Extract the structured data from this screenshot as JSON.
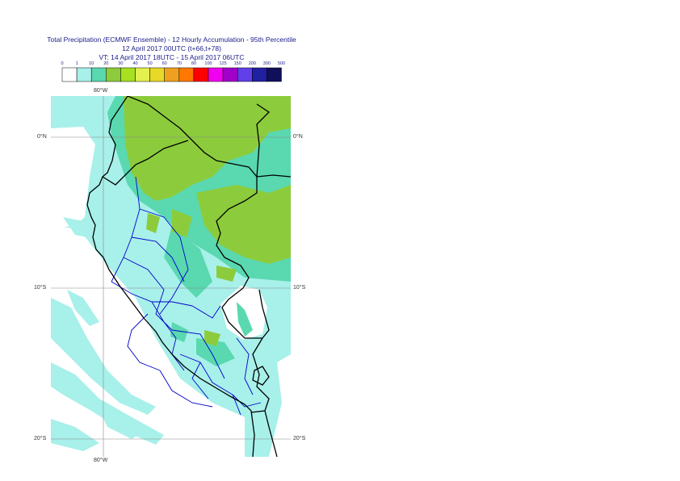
{
  "title": {
    "line1": "Total Precipitation (ECMWF Ensemble) - 12 Hourly Accumulation - 95th Percentile",
    "line2": "12 April 2017 00UTC (t+66,t+78)",
    "line3": "VT: 14 April 2017 18UTC - 15 April 2017 06UTC"
  },
  "legend": {
    "ticks": [
      "0",
      "1",
      "10",
      "20",
      "30",
      "40",
      "50",
      "60",
      "70",
      "80",
      "100",
      "125",
      "150",
      "200",
      "300",
      "500"
    ],
    "colors": [
      "#ffffff",
      "#a8f0ea",
      "#5ad8b0",
      "#8ccc3c",
      "#a6e020",
      "#e2f050",
      "#e8d828",
      "#f0a020",
      "#ff7800",
      "#ff0000",
      "#f000f0",
      "#a000c8",
      "#6040e8",
      "#2020a0",
      "#10105a"
    ]
  },
  "map": {
    "colors": {
      "background": "#a8f0ea",
      "medium": "#5ad8b0",
      "heavy": "#8ccc3c",
      "dry": "#ffffff",
      "borders": "#000000",
      "regions": "#0000cc",
      "grid": "#888888"
    },
    "lon_labels": {
      "top": "80°W",
      "bottom": "80°W"
    },
    "lat_labels": {
      "eq_left": "0°N",
      "eq_right": "0°N",
      "ten_left": "10°S",
      "ten_right": "10°S",
      "twenty_left": "20°S",
      "twenty_right": "20°S"
    }
  }
}
